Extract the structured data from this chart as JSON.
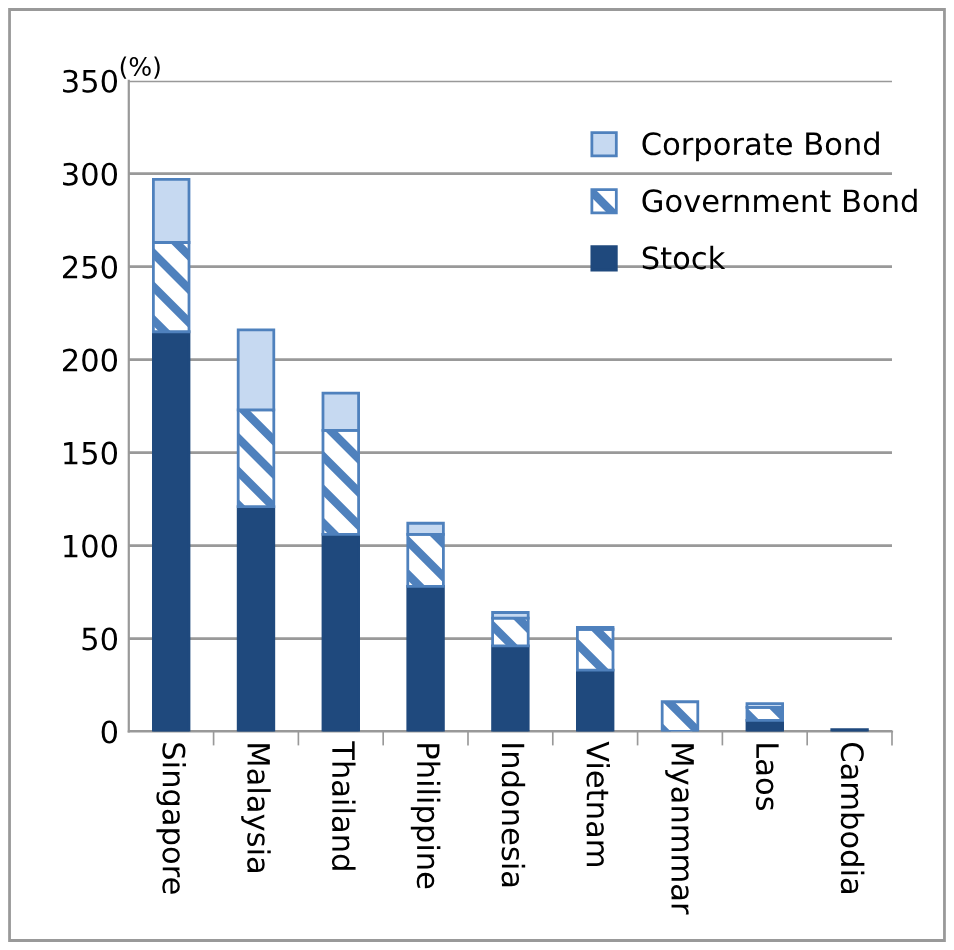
{
  "chart_data": {
    "type": "bar",
    "stacked": true,
    "ylabel": "(%)",
    "categories": [
      "Singapore",
      "Malaysia",
      "Thailand",
      "Philippine",
      "Indonesia",
      "Vietnam",
      "Myanmmar",
      "Laos",
      "Cambodia"
    ],
    "series": [
      {
        "name": "Stock",
        "color": "#1f497d",
        "values": [
          215,
          121,
          106,
          78,
          46,
          33,
          0,
          6,
          1
        ]
      },
      {
        "name": "Government Bond",
        "color": "#4f81bd",
        "values": [
          48,
          52,
          56,
          28,
          15,
          22,
          16,
          7,
          0
        ]
      },
      {
        "name": "Corporate Bond",
        "color": "#c6d9f1",
        "values": [
          34,
          43,
          20,
          6,
          3,
          1,
          0,
          2,
          0
        ]
      }
    ],
    "ylim": [
      0,
      350
    ],
    "yticks": [
      0,
      50,
      100,
      150,
      200,
      250,
      300,
      350
    ],
    "grid": "y",
    "legend": "top right"
  }
}
